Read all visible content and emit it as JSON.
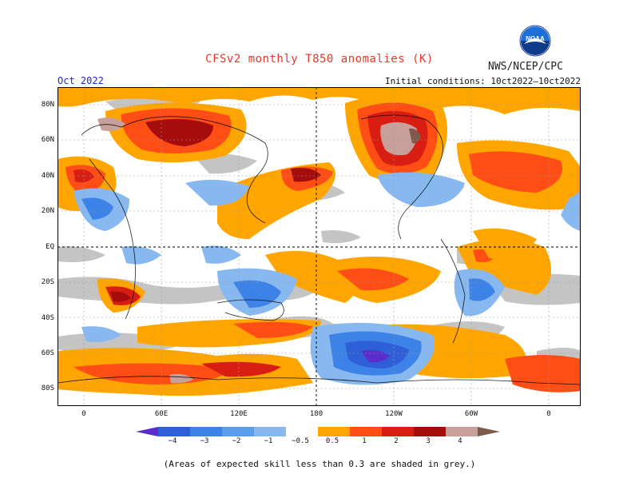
{
  "header": {
    "title": "CFSv2 monthly T850 anomalies (K)",
    "month": "Oct 2022",
    "initial_conditions": "Initial conditions: 10ct2022–10ct2022",
    "agency": "NWS/NCEP/CPC",
    "logo_text": "NOAA"
  },
  "map": {
    "y_ticks": [
      "80N",
      "60N",
      "40N",
      "20N",
      "EQ",
      "20S",
      "40S",
      "60S",
      "80S"
    ],
    "x_ticks": [
      "0",
      "60E",
      "120E",
      "180",
      "120W",
      "60W",
      "0"
    ],
    "colors": {
      "n4": "#5a2dcc",
      "n3": "#2f5fd8",
      "n2": "#3d82e6",
      "n1": "#87b8f0",
      "p1": "#ffa500",
      "p2": "#ff4d16",
      "p3": "#d81e12",
      "p4": "#a50d0d",
      "p5": "#c8a09a",
      "p6": "#7d5a4c",
      "grey": "#c4c4c4"
    }
  },
  "colorbar": {
    "labels": [
      "−4",
      "−3",
      "−2",
      "−1",
      "−0.5",
      "0.5",
      "1",
      "2",
      "3",
      "4"
    ]
  },
  "footnote": "(Areas of expected skill less than 0.3 are shaded in grey.)"
}
